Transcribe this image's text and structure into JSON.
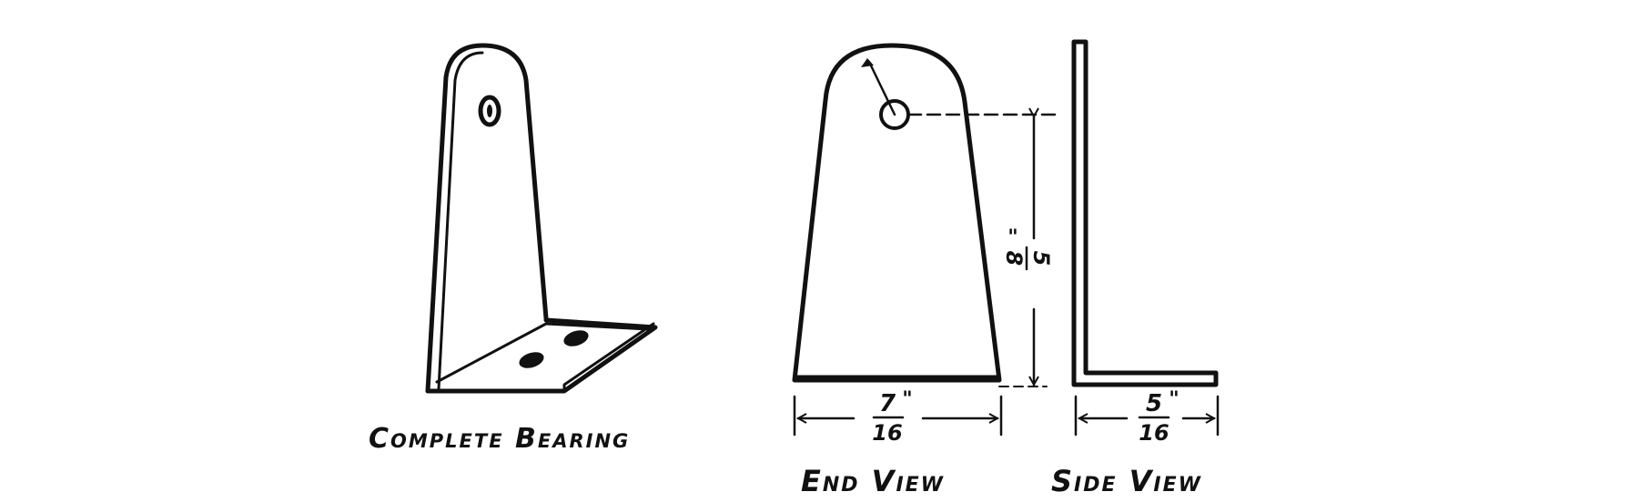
{
  "diagram": {
    "views": {
      "complete": {
        "label": "Complete Bearing"
      },
      "end": {
        "label": "End View",
        "width_dim": {
          "numerator": "7",
          "mark": "\"",
          "denominator": "16"
        },
        "height_dim": {
          "numerator": "5",
          "mark": "\"",
          "denominator": "8"
        }
      },
      "side": {
        "label": "Side View",
        "width_dim": {
          "numerator": "5",
          "mark": "\"",
          "denominator": "16"
        }
      }
    },
    "ink_color": "#111111",
    "background_color": "#ffffff"
  }
}
